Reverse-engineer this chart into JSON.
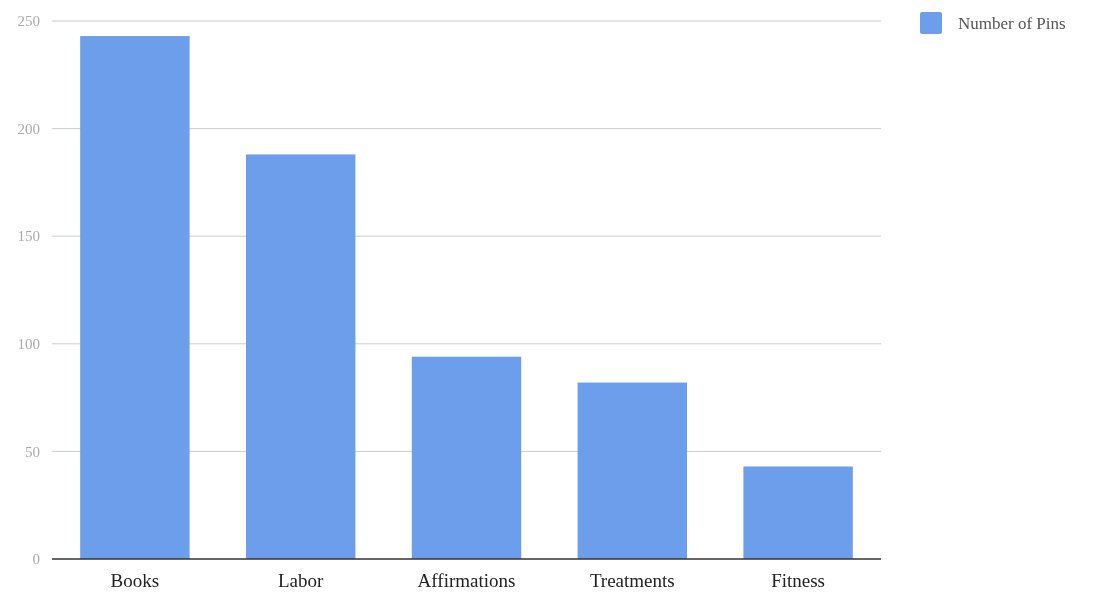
{
  "chart_data": {
    "type": "bar",
    "categories": [
      "Books",
      "Labor",
      "Affirmations",
      "Treatments",
      "Fitness"
    ],
    "series": [
      {
        "name": "Number of Pins",
        "color": "#6d9eeb",
        "values": [
          243,
          188,
          94,
          82,
          43
        ]
      }
    ],
    "ylim": [
      0,
      250
    ],
    "yticks": [
      0,
      50,
      100,
      150,
      200,
      250
    ],
    "grid": "y",
    "legend": "top right"
  }
}
